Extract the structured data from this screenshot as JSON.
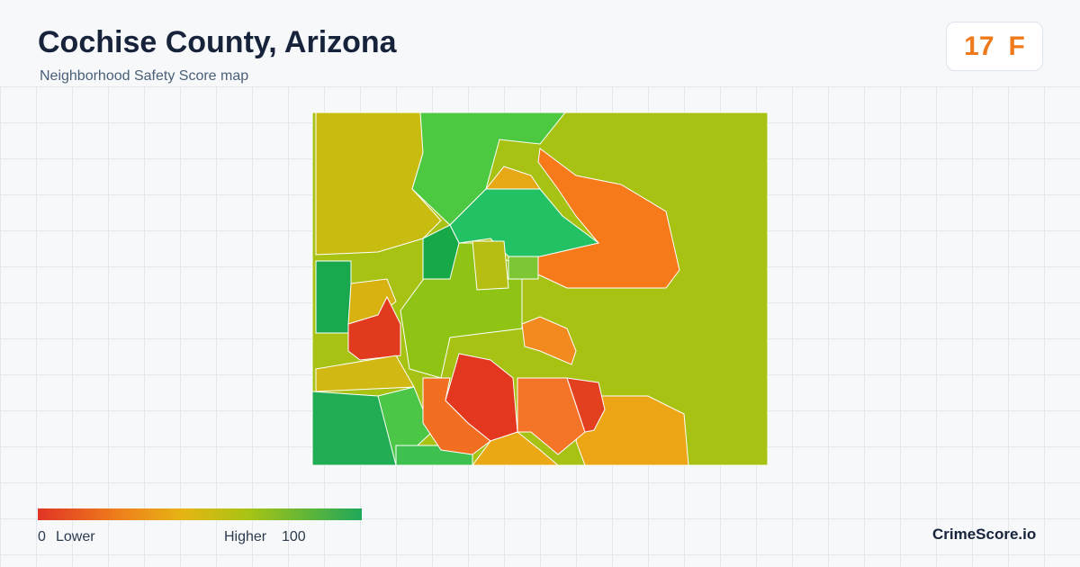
{
  "header": {
    "title": "Cochise County, Arizona",
    "subtitle": "Neighborhood Safety Score map"
  },
  "score": {
    "value": 17,
    "grade": "F"
  },
  "legend": {
    "min": 0,
    "min_label": "Lower",
    "max_label": "Higher",
    "max": 100
  },
  "brand": "CrimeScore.io"
}
